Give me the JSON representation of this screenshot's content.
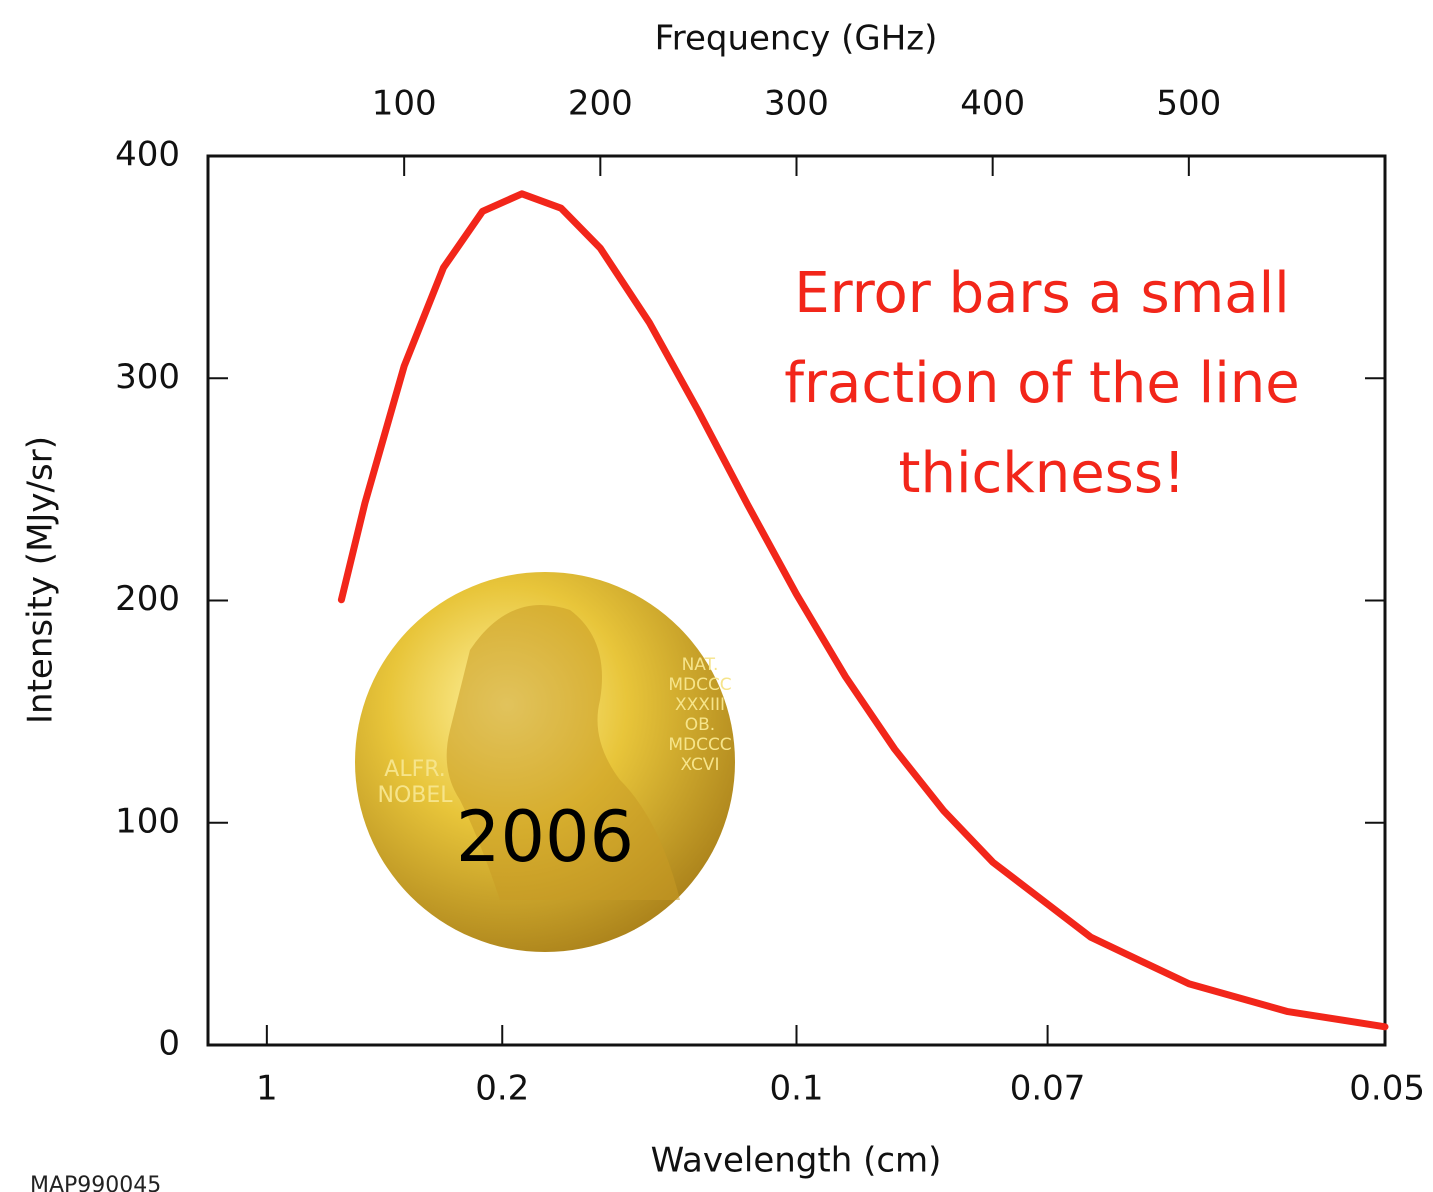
{
  "chart_data": {
    "type": "line",
    "x2label": "Frequency (GHz)",
    "xlabel": "Wavelength (cm)",
    "ylabel": "Intensity (MJy/sr)",
    "xlim": [
      0,
      600
    ],
    "x2ticks": [
      100,
      200,
      300,
      400,
      500
    ],
    "xticks": [
      {
        "value": 30,
        "label": "1"
      },
      {
        "value": 150,
        "label": "0.2"
      },
      {
        "value": 300,
        "label": "0.1"
      },
      {
        "value": 428,
        "label": "0.07"
      },
      {
        "value": 600,
        "label": "0.05"
      }
    ],
    "ylim": [
      0,
      400
    ],
    "yticks": [
      0,
      100,
      200,
      300,
      400
    ],
    "grid": false,
    "color": "#f2261a",
    "x": [
      68,
      80,
      100,
      120,
      140,
      160,
      180,
      200,
      225,
      250,
      275,
      300,
      325,
      350,
      375,
      400,
      450,
      500,
      550,
      600
    ],
    "values": [
      200.3,
      243.8,
      305.5,
      349.7,
      375.1,
      383.0,
      376.5,
      358.5,
      325.0,
      285.2,
      243.2,
      202.8,
      165.7,
      133.2,
      105.4,
      82.3,
      48.5,
      27.6,
      15.1,
      8.2
    ],
    "annotation": [
      "Error bars a small",
      "fraction of the line",
      "thickness!"
    ],
    "medal_year": "2006",
    "medal_left_inscription": [
      "ALFR.",
      "NOBEL"
    ],
    "medal_right_inscription": [
      "NAT.",
      "MDCCC",
      "XXXIII",
      "OB.",
      "MDCCC",
      "XCVI"
    ],
    "credit": "MAP990045"
  }
}
